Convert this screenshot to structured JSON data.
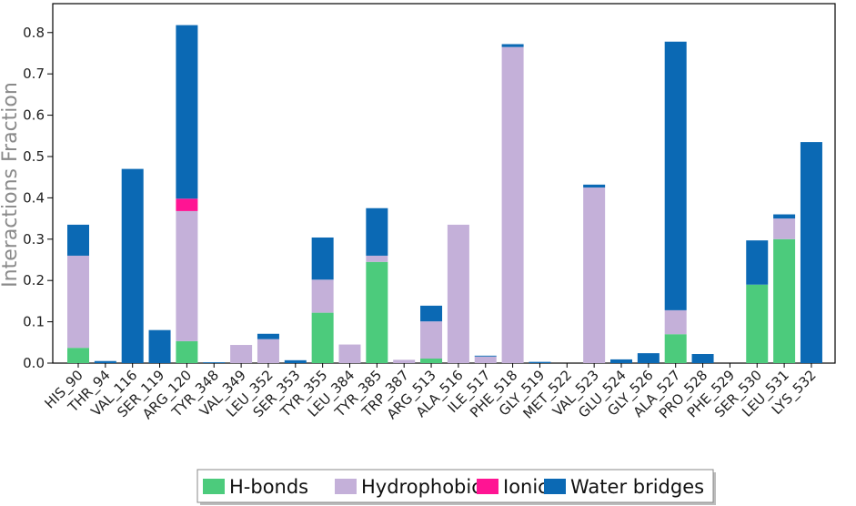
{
  "chart_data": {
    "type": "bar",
    "stacked": true,
    "ylabel": "Interactions Fraction",
    "xlabel": "",
    "ylim": [
      0,
      0.87
    ],
    "yticks": [
      0.0,
      0.1,
      0.2,
      0.3,
      0.4,
      0.5,
      0.6,
      0.7,
      0.8
    ],
    "grid": false,
    "legend_position": "bottom-center",
    "categories": [
      "HIS_90",
      "THR_94",
      "VAL_116",
      "SER_119",
      "ARG_120",
      "TYR_348",
      "VAL_349",
      "LEU_352",
      "SER_353",
      "TYR_355",
      "LEU_384",
      "TYR_385",
      "TRP_387",
      "ARG_513",
      "ALA_516",
      "ILE_517",
      "PHE_518",
      "GLY_519",
      "MET_522",
      "VAL_523",
      "GLU_524",
      "GLY_526",
      "ALA_527",
      "PRO_528",
      "PHE_529",
      "SER_530",
      "LEU_531",
      "LYS_532"
    ],
    "series": [
      {
        "name": "H-bonds",
        "color": "#4ccb7c",
        "values": [
          0.037,
          0,
          0,
          0,
          0.053,
          0,
          0,
          0,
          0,
          0.122,
          0,
          0.245,
          0,
          0.011,
          0,
          0,
          0,
          0,
          0,
          0,
          0,
          0,
          0.07,
          0,
          0,
          0.19,
          0.3,
          0
        ]
      },
      {
        "name": "Hydrophobic",
        "color": "#c4b0d9",
        "values": [
          0.223,
          0,
          0,
          0,
          0.315,
          0,
          0.044,
          0.058,
          0,
          0.08,
          0.045,
          0.015,
          0.008,
          0.09,
          0.335,
          0.016,
          0.765,
          0,
          0,
          0.425,
          0,
          0,
          0.058,
          0,
          0,
          0,
          0.05,
          0
        ]
      },
      {
        "name": "Ionic",
        "color": "#ff1493",
        "values": [
          0,
          0,
          0,
          0,
          0.03,
          0,
          0,
          0,
          0,
          0,
          0,
          0,
          0,
          0,
          0,
          0,
          0,
          0,
          0,
          0,
          0,
          0,
          0,
          0,
          0,
          0,
          0,
          0
        ]
      },
      {
        "name": "Water bridges",
        "color": "#0b69b4",
        "values": [
          0.075,
          0.005,
          0.47,
          0.08,
          0.42,
          0.002,
          0,
          0.013,
          0.007,
          0.102,
          0,
          0.115,
          0,
          0.038,
          0,
          0.002,
          0.007,
          0.003,
          0,
          0.007,
          0.009,
          0.024,
          0.65,
          0.022,
          0,
          0.107,
          0.01,
          0.535
        ]
      }
    ]
  },
  "legend": {
    "items": [
      {
        "label": "H-bonds",
        "color": "#4ccb7c"
      },
      {
        "label": "Hydrophobic",
        "color": "#c4b0d9"
      },
      {
        "label": "Ionic",
        "color": "#ff1493"
      },
      {
        "label": "Water bridges",
        "color": "#0b69b4"
      }
    ]
  }
}
